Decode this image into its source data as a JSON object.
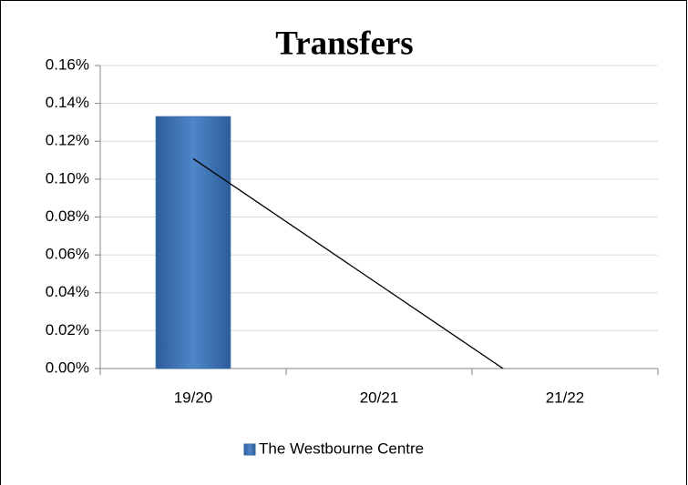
{
  "chart_data": {
    "type": "bar",
    "title": "Transfers",
    "categories": [
      "19/20",
      "20/21",
      "21/22"
    ],
    "series": [
      {
        "name": "The Westbourne Centre",
        "color": "#4a7ebb",
        "values": [
          0.133,
          0,
          0
        ]
      }
    ],
    "ylim": [
      0,
      0.16
    ],
    "yticks": [
      {
        "value": 0,
        "label": "0.00%"
      },
      {
        "value": 0.02,
        "label": "0.02%"
      },
      {
        "value": 0.04,
        "label": "0.04%"
      },
      {
        "value": 0.06,
        "label": "0.06%"
      },
      {
        "value": 0.08,
        "label": "0.08%"
      },
      {
        "value": 0.1,
        "label": "0.10%"
      },
      {
        "value": 0.12,
        "label": "0.12%"
      },
      {
        "value": 0.14,
        "label": "0.14%"
      },
      {
        "value": 0.16,
        "label": "0.16%"
      }
    ],
    "grid": true,
    "trendline": "linear",
    "legend": "bottom"
  }
}
